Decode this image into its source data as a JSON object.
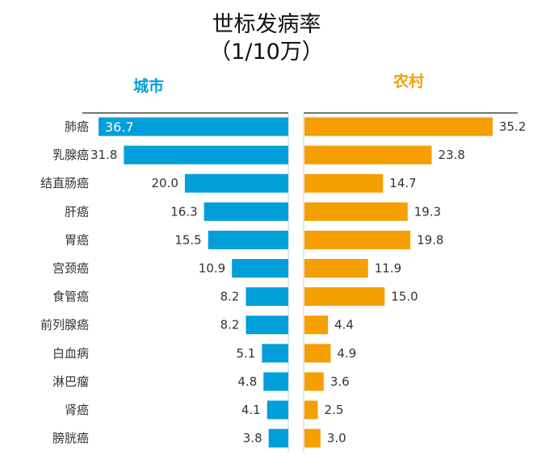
{
  "chart_data": {
    "type": "bar",
    "orientation": "horizontal-butterfly",
    "title": "世标发病率",
    "subtitle": "（1/10万）",
    "categories": [
      "肺癌",
      "乳腺癌",
      "结直肠癌",
      "肝癌",
      "胃癌",
      "宫颈癌",
      "食管癌",
      "前列腺癌",
      "白血病",
      "淋巴瘤",
      "肾癌",
      "膀胱癌"
    ],
    "series": [
      {
        "name": "城市",
        "color": "#009FDA",
        "values": [
          36.7,
          31.8,
          20.0,
          16.3,
          15.5,
          10.9,
          8.2,
          8.2,
          5.1,
          4.8,
          4.1,
          3.8
        ]
      },
      {
        "name": "农村",
        "color": "#F59F00",
        "values": [
          35.2,
          23.8,
          14.7,
          19.3,
          19.8,
          11.9,
          15.0,
          4.4,
          4.9,
          3.6,
          2.5,
          3.0
        ]
      }
    ],
    "xlim": [
      0,
      37
    ],
    "grid": false
  }
}
